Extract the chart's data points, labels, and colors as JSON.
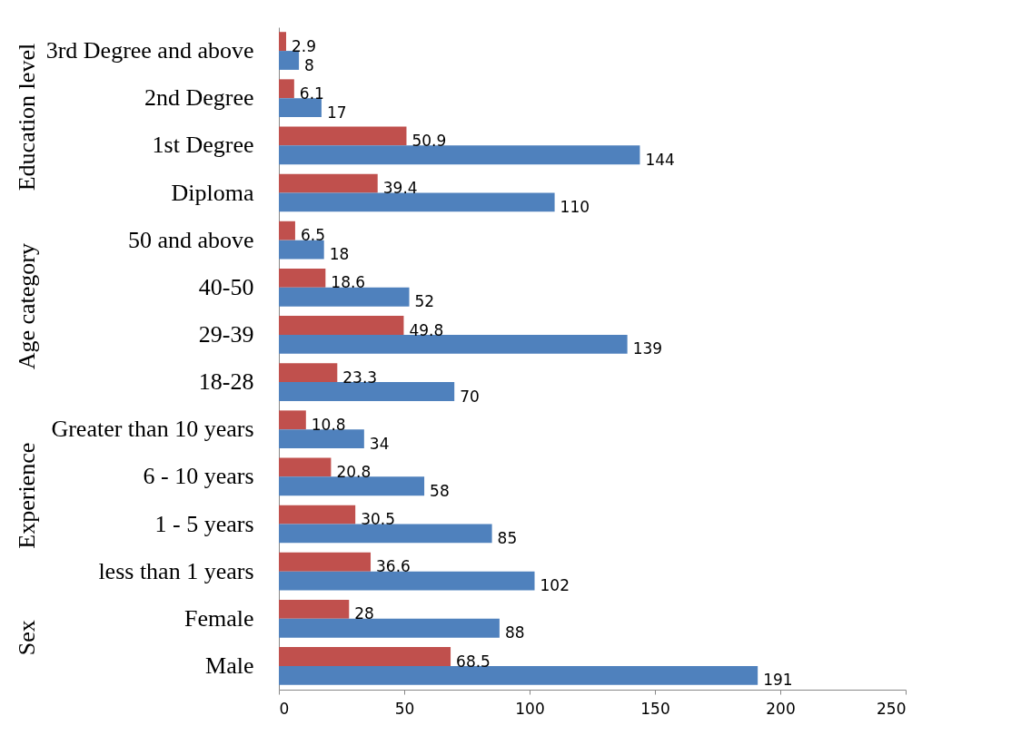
{
  "chart_data": {
    "type": "bar",
    "orientation": "horizontal",
    "categories": [
      "3rd Degree and above",
      "2nd Degree",
      "1st Degree",
      "Diploma",
      "50 and above",
      "40-50",
      "29-39",
      "18-28",
      "Greater than 10 years",
      "6 - 10 years",
      "1 - 5 years",
      "less than 1 years",
      "Female",
      "Male"
    ],
    "series": [
      {
        "color": "#c0504d",
        "values": [
          2.9,
          6.1,
          50.9,
          39.4,
          6.5,
          18.6,
          49.8,
          23.3,
          10.8,
          20.8,
          30.5,
          36.6,
          28,
          68.5
        ]
      },
      {
        "color": "#4f81bd",
        "values": [
          8,
          17,
          144,
          110,
          18,
          52,
          139,
          70,
          34,
          58,
          85,
          102,
          88,
          191
        ]
      }
    ],
    "xlim": [
      0,
      250
    ],
    "xticks": [
      0,
      50,
      100,
      150,
      200,
      250
    ],
    "grid": false,
    "legend": false,
    "data_labels": true,
    "annotations": [
      "Education level",
      "Age category",
      "Experience",
      "Sex"
    ]
  }
}
